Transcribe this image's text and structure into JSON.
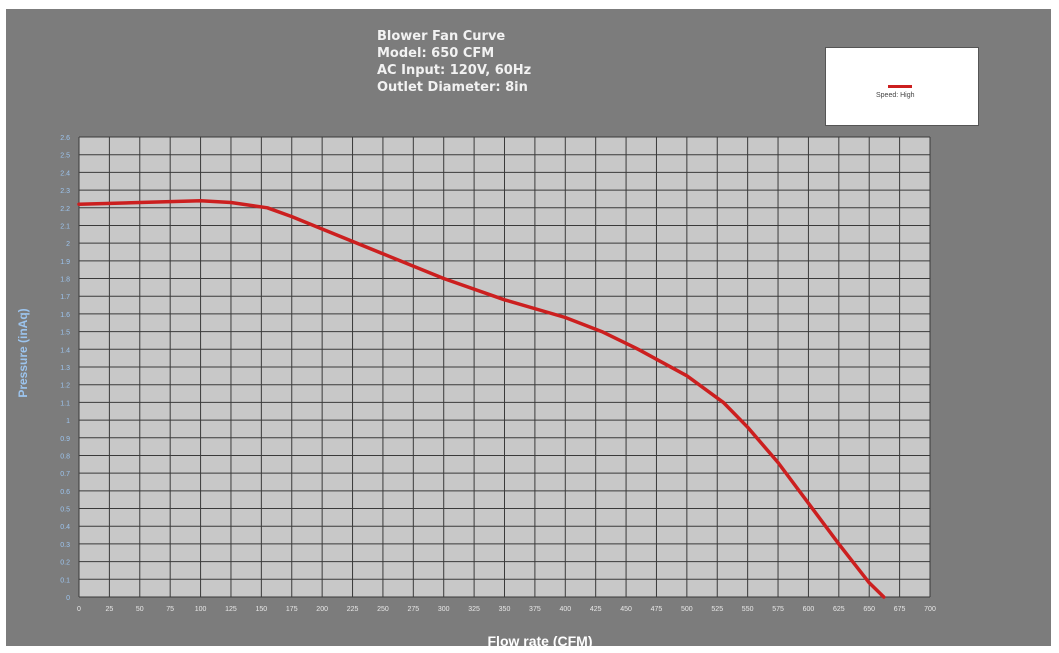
{
  "chart_data": {
    "type": "line",
    "title_lines": [
      "Blower Fan Curve",
      "Model: 650 CFM",
      "AC Input: 120V, 60Hz",
      "Outlet Diameter: 8in"
    ],
    "xlabel": "Flow rate (CFM)",
    "ylabel": "Pressure (inAq)",
    "xlim": [
      0,
      700
    ],
    "ylim": [
      0,
      2.6
    ],
    "x_ticks": [
      0,
      25,
      50,
      75,
      100,
      125,
      150,
      175,
      200,
      225,
      250,
      275,
      300,
      325,
      350,
      375,
      400,
      425,
      450,
      475,
      500,
      525,
      550,
      575,
      600,
      625,
      650,
      675,
      700
    ],
    "y_ticks": [
      "0",
      "0.1",
      "0.2",
      "0.3",
      "0.4",
      "0.5",
      "0.6",
      "0.7",
      "0.8",
      "0.9",
      "1",
      "1.1",
      "1.2",
      "1.3",
      "1.4",
      "1.5",
      "1.6",
      "1.7",
      "1.8",
      "1.9",
      "2",
      "2.1",
      "2.2",
      "2.3",
      "2.4",
      "2.5",
      "2.6"
    ],
    "grid": true,
    "legend_position": "top-right",
    "series": [
      {
        "name": "Speed: High",
        "color": "#cc1f1f",
        "x": [
          0,
          50,
          100,
          125,
          155,
          175,
          200,
          250,
          300,
          350,
          400,
          430,
          460,
          500,
          530,
          550,
          575,
          600,
          625,
          650,
          662
        ],
        "y": [
          2.22,
          2.23,
          2.24,
          2.23,
          2.2,
          2.15,
          2.08,
          1.94,
          1.8,
          1.68,
          1.58,
          1.5,
          1.4,
          1.25,
          1.1,
          0.96,
          0.76,
          0.53,
          0.3,
          0.08,
          0
        ]
      }
    ]
  }
}
